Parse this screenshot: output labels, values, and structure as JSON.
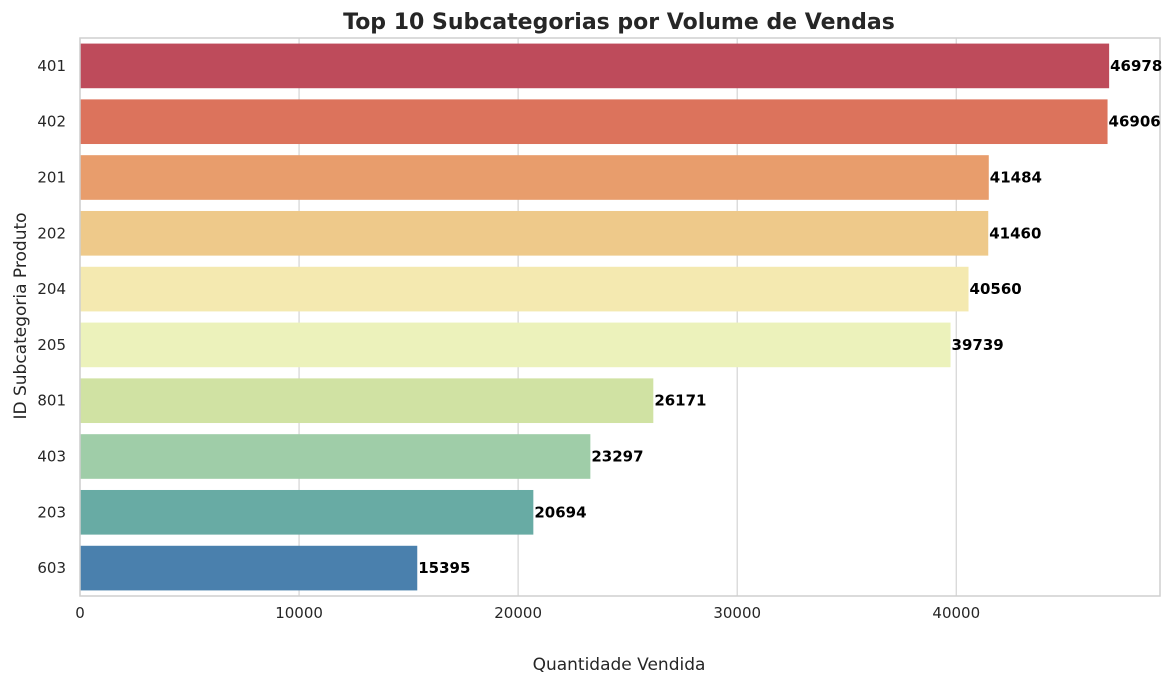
{
  "chart_data": {
    "type": "bar",
    "orientation": "horizontal",
    "title": "Top 10 Subcategorias por Volume de Vendas",
    "xlabel": "Quantidade Vendida",
    "ylabel": "ID Subcategoria Produto",
    "categories": [
      "401",
      "402",
      "201",
      "202",
      "204",
      "205",
      "801",
      "403",
      "203",
      "603"
    ],
    "values": [
      46978,
      46906,
      41484,
      41460,
      40560,
      39739,
      26171,
      23297,
      20694,
      15395
    ],
    "data_labels": [
      "46978",
      "46906",
      "41484",
      "41460",
      "40560",
      "39739",
      "26171",
      "23297",
      "20694",
      "15395"
    ],
    "colors": [
      "#be4b5b",
      "#dc735c",
      "#e89d6c",
      "#eec98a",
      "#f4e9b0",
      "#ecf2bb",
      "#d0e2a3",
      "#9fcda8",
      "#68aba4",
      "#4a80ad"
    ],
    "xlim": [
      0,
      49300
    ],
    "xticks": [
      0,
      10000,
      20000,
      30000,
      40000
    ],
    "xtick_labels": [
      "0",
      "10000",
      "20000",
      "30000",
      "40000"
    ],
    "grid": "vertical",
    "legend": "none"
  }
}
